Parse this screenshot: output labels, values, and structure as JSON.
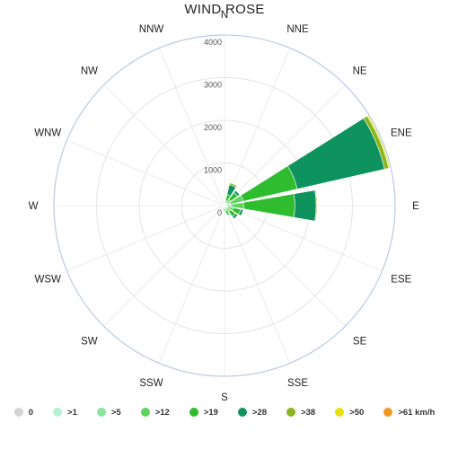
{
  "chart_data": {
    "type": "wind-rose",
    "title": "WIND ROSE",
    "directions": [
      "N",
      "NNE",
      "NE",
      "ENE",
      "E",
      "ESE",
      "SE",
      "SSE",
      "S",
      "SSW",
      "SW",
      "WSW",
      "W",
      "WNW",
      "NW",
      "NNW"
    ],
    "radial_ticks": [
      "0",
      "1000",
      "2000",
      "3000",
      "4000"
    ],
    "rmax": 4000,
    "stacked": true,
    "series": [
      {
        "name": "0",
        "color": "#d3d3d3",
        "values": [
          0,
          0,
          0,
          0,
          0,
          0,
          0,
          0,
          0,
          0,
          0,
          0,
          0,
          0,
          0,
          0
        ]
      },
      {
        "name": ">1",
        "color": "#b6f1d6",
        "values": [
          10,
          15,
          20,
          30,
          30,
          20,
          20,
          20,
          15,
          15,
          10,
          10,
          10,
          10,
          10,
          10
        ]
      },
      {
        "name": ">5",
        "color": "#88e49e",
        "values": [
          20,
          40,
          60,
          120,
          120,
          60,
          50,
          40,
          40,
          30,
          30,
          25,
          20,
          20,
          20,
          20
        ]
      },
      {
        "name": ">12",
        "color": "#5ed35e",
        "values": [
          20,
          60,
          100,
          300,
          300,
          130,
          100,
          60,
          50,
          40,
          30,
          30,
          20,
          20,
          20,
          20
        ]
      },
      {
        "name": ">19",
        "color": "#2fbd2f",
        "values": [
          10,
          150,
          200,
          1300,
          1200,
          180,
          150,
          80,
          30,
          20,
          10,
          10,
          10,
          10,
          10,
          10
        ]
      },
      {
        "name": ">28",
        "color": "#0f935e",
        "values": [
          0,
          240,
          60,
          2100,
          500,
          60,
          60,
          30,
          0,
          0,
          0,
          0,
          0,
          0,
          0,
          0
        ]
      },
      {
        "name": ">38",
        "color": "#8ab620",
        "values": [
          0,
          40,
          0,
          100,
          20,
          0,
          0,
          0,
          0,
          0,
          0,
          0,
          0,
          0,
          0,
          0
        ]
      },
      {
        "name": ">50",
        "color": "#e8de10",
        "values": [
          0,
          0,
          0,
          30,
          0,
          0,
          0,
          0,
          0,
          0,
          0,
          0,
          0,
          0,
          0,
          0
        ]
      },
      {
        "name": ">61 km/h",
        "color": "#ef9a22",
        "values": [
          0,
          0,
          0,
          0,
          0,
          0,
          0,
          0,
          0,
          0,
          0,
          0,
          0,
          0,
          0,
          0
        ]
      }
    ]
  }
}
